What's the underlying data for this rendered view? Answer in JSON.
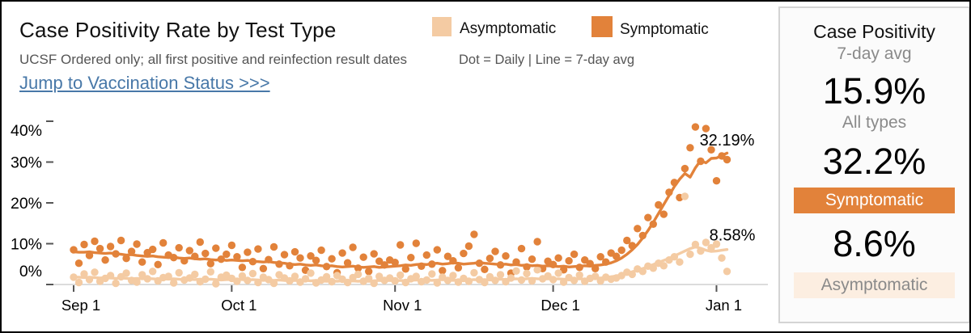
{
  "header": {
    "title": "Case Positivity Rate by Test Type",
    "subtitle": "UCSF Ordered only; all first positive and reinfection result dates",
    "link": "Jump to Vaccination Status >>>"
  },
  "legend": {
    "asymptomatic_label": "Asymptomatic",
    "symptomatic_label": "Symptomatic",
    "note": "Dot = Daily  |  Line = 7-day avg"
  },
  "sidebar": {
    "title": "Case Positivity",
    "subtitle": "7-day avg",
    "all_types_value": "15.9%",
    "all_types_label": "All types",
    "symptomatic_value": "32.2%",
    "symptomatic_label": "Symptomatic",
    "asymptomatic_value": "8.6%",
    "asymptomatic_label": "Asymptomatic"
  },
  "colors": {
    "symptomatic": "#E2823A",
    "asymptomatic": "#F4CBA3",
    "asymptomatic_chip_bg": "#FCEEE1",
    "link": "#4878A8",
    "axis_line": "#C8C8C8",
    "tick": "#555555",
    "text_gray": "#555555"
  },
  "chart_data": {
    "type": "scatter",
    "subtype": "daily dots with 7-day average lines",
    "x_start_date": "Sep 1",
    "x_end_date": "Jan 3",
    "x_tick_labels": [
      "Sep 1",
      "Oct 1",
      "Nov 1",
      "Dec 1",
      "Jan 1"
    ],
    "x_tick_day_index": [
      0,
      30,
      61,
      91,
      122
    ],
    "y_tick_labels": [
      "0%",
      "10%",
      "20%",
      "30%",
      "40%"
    ],
    "y_tick_values": [
      0,
      10,
      20,
      30,
      40
    ],
    "ylim": [
      0,
      42
    ],
    "grid": false,
    "annotations": [
      {
        "text": "32.19%",
        "day": 124,
        "value": 35.4
      },
      {
        "text": "8.58%",
        "day": 125,
        "value": 12.2
      }
    ],
    "series": [
      {
        "name": "Symptomatic daily",
        "color_key": "symptomatic",
        "style": "dots",
        "values": [
          8.5,
          5.2,
          9.8,
          7.1,
          10.6,
          8.8,
          6.0,
          9.3,
          7.5,
          10.8,
          6.4,
          8.1,
          9.9,
          5.5,
          7.8,
          8.6,
          4.9,
          10.2,
          7.2,
          6.6,
          9.0,
          5.8,
          8.3,
          6.9,
          10.4,
          7.6,
          5.1,
          8.9,
          6.2,
          7.4,
          9.6,
          6.8,
          4.2,
          7.9,
          5.6,
          8.7,
          3.9,
          6.1,
          9.2,
          5.0,
          7.3,
          4.6,
          8.0,
          6.5,
          3.5,
          7.0,
          5.9,
          8.4,
          4.4,
          6.3,
          2.9,
          7.7,
          5.3,
          9.1,
          4.0,
          6.7,
          3.2,
          7.5,
          5.7,
          4.8,
          6.0,
          5.4,
          9.7,
          3.8,
          6.6,
          10.1,
          4.5,
          7.2,
          5.0,
          8.5,
          3.4,
          6.9,
          5.8,
          4.1,
          7.6,
          9.4,
          12.3,
          5.2,
          3.7,
          6.4,
          8.1,
          4.8,
          7.0,
          2.8,
          5.5,
          8.8,
          4.3,
          6.2,
          10.5,
          3.9,
          5.7,
          4.9,
          6.5,
          3.6,
          5.8,
          7.4,
          4.2,
          6.0,
          5.1,
          3.9,
          6.8,
          5.5,
          7.7,
          6.9,
          8.4,
          10.8,
          9.5,
          13.7,
          12.0,
          16.4,
          14.8,
          19.5,
          17.2,
          22.6,
          25.0,
          21.3,
          28.4,
          33.5,
          38.6,
          30.2,
          38.2,
          33.0,
          25.4,
          31.5,
          30.6
        ]
      },
      {
        "name": "Asymptomatic daily",
        "color_key": "asymptomatic",
        "style": "dots",
        "values": [
          1.8,
          0.5,
          2.6,
          1.2,
          3.0,
          0.8,
          1.5,
          2.2,
          0.3,
          1.9,
          2.8,
          1.0,
          0.6,
          2.4,
          1.4,
          3.2,
          0.9,
          1.7,
          2.0,
          0.4,
          2.9,
          1.1,
          1.6,
          2.5,
          0.7,
          1.3,
          3.1,
          0.2,
          1.8,
          2.3,
          1.5,
          0.8,
          2.1,
          1.0,
          2.7,
          0.5,
          1.8,
          1.2,
          0.3,
          2.4,
          1.6,
          0.9,
          2.0,
          0.6,
          1.4,
          2.8,
          0.4,
          1.1,
          1.9,
          0.7,
          2.2,
          1.3,
          0.5,
          1.7,
          2.5,
          0.8,
          1.5,
          0.3,
          2.0,
          1.0,
          1.6,
          0.9,
          2.3,
          0.5,
          1.4,
          2.0,
          0.7,
          1.1,
          2.6,
          0.4,
          1.8,
          1.0,
          2.2,
          0.6,
          1.5,
          0.8,
          2.9,
          1.2,
          0.5,
          1.9,
          1.0,
          2.4,
          0.7,
          1.6,
          3.3,
          1.1,
          2.7,
          0.9,
          3.6,
          1.4,
          2.1,
          1.2,
          2.8,
          0.6,
          1.7,
          1.0,
          2.3,
          0.8,
          1.5,
          2.0,
          0.9,
          1.8,
          1.3,
          1.6,
          2.2,
          3.0,
          2.5,
          3.8,
          3.2,
          4.5,
          4.0,
          5.2,
          4.6,
          6.0,
          6.8,
          5.5,
          21.6,
          7.4,
          9.8,
          8.2,
          10.3,
          9.0,
          9.9,
          6.5,
          3.2
        ]
      },
      {
        "name": "Asymptomatic 7-day avg",
        "color_key": "asymptomatic",
        "style": "line",
        "values": [
          1.8,
          1.8,
          1.7,
          1.8,
          1.7,
          1.6,
          1.7,
          1.6,
          1.5,
          1.6,
          1.5,
          1.4,
          1.5,
          1.4,
          1.5,
          1.4,
          1.3,
          1.4,
          1.3,
          1.4,
          1.3,
          1.2,
          1.3,
          1.2,
          1.3,
          1.2,
          1.3,
          1.2,
          1.1,
          1.2,
          1.2,
          1.3,
          1.2,
          1.1,
          1.2,
          1.1,
          1.0,
          1.1,
          1.0,
          1.1,
          1.0,
          0.9,
          1.0,
          0.9,
          1.0,
          0.9,
          1.0,
          0.9,
          0.8,
          0.9,
          0.8,
          0.9,
          0.8,
          0.9,
          0.8,
          0.9,
          0.8,
          0.9,
          1.0,
          0.9,
          1.0,
          0.9,
          1.0,
          0.9,
          1.0,
          1.1,
          1.0,
          1.1,
          1.0,
          1.1,
          1.2,
          1.1,
          1.0,
          1.1,
          1.0,
          1.1,
          1.2,
          1.1,
          1.2,
          1.1,
          1.2,
          1.3,
          1.2,
          1.3,
          1.4,
          1.3,
          1.4,
          1.5,
          1.4,
          1.3,
          1.4,
          1.3,
          1.4,
          1.3,
          1.2,
          1.3,
          1.4,
          1.3,
          1.4,
          1.5,
          1.6,
          1.7,
          1.9,
          2.1,
          2.4,
          2.7,
          3.1,
          3.5,
          3.9,
          4.4,
          4.9,
          5.4,
          5.9,
          6.4,
          7.0,
          7.6,
          8.2,
          8.8,
          9.2,
          8.9,
          8.4,
          8.1,
          8.2,
          8.4,
          8.58
        ]
      },
      {
        "name": "Symptomatic 7-day avg",
        "color_key": "symptomatic",
        "style": "line",
        "values": [
          8.0,
          7.9,
          7.9,
          8.0,
          7.8,
          7.7,
          7.6,
          7.7,
          7.5,
          7.4,
          7.2,
          7.3,
          7.1,
          7.0,
          6.9,
          7.0,
          6.8,
          6.7,
          6.6,
          6.7,
          6.5,
          6.4,
          6.5,
          6.3,
          6.2,
          6.3,
          6.1,
          6.0,
          6.1,
          5.9,
          6.0,
          5.9,
          5.8,
          5.9,
          5.7,
          5.6,
          5.5,
          5.6,
          5.4,
          5.3,
          5.2,
          5.0,
          4.9,
          5.0,
          4.8,
          4.7,
          4.8,
          4.6,
          4.5,
          4.6,
          4.4,
          4.3,
          4.4,
          4.5,
          4.3,
          4.2,
          4.3,
          4.4,
          4.2,
          4.3,
          4.4,
          4.5,
          4.6,
          4.8,
          4.7,
          4.9,
          5.0,
          4.9,
          5.1,
          5.2,
          5.0,
          5.1,
          5.3,
          5.2,
          5.0,
          5.1,
          5.2,
          5.4,
          5.2,
          5.1,
          5.0,
          4.9,
          5.0,
          4.8,
          4.9,
          4.7,
          4.8,
          4.6,
          4.7,
          4.5,
          4.6,
          4.5,
          4.4,
          4.5,
          4.3,
          4.4,
          4.5,
          4.6,
          4.5,
          4.7,
          4.8,
          5.0,
          5.3,
          5.8,
          6.5,
          7.4,
          8.5,
          9.8,
          11.4,
          13.2,
          15.2,
          17.4,
          19.6,
          21.8,
          24.0,
          25.8,
          27.2,
          26.3,
          28.6,
          30.4,
          29.8,
          30.9,
          31.0,
          31.6,
          32.19
        ]
      }
    ]
  }
}
